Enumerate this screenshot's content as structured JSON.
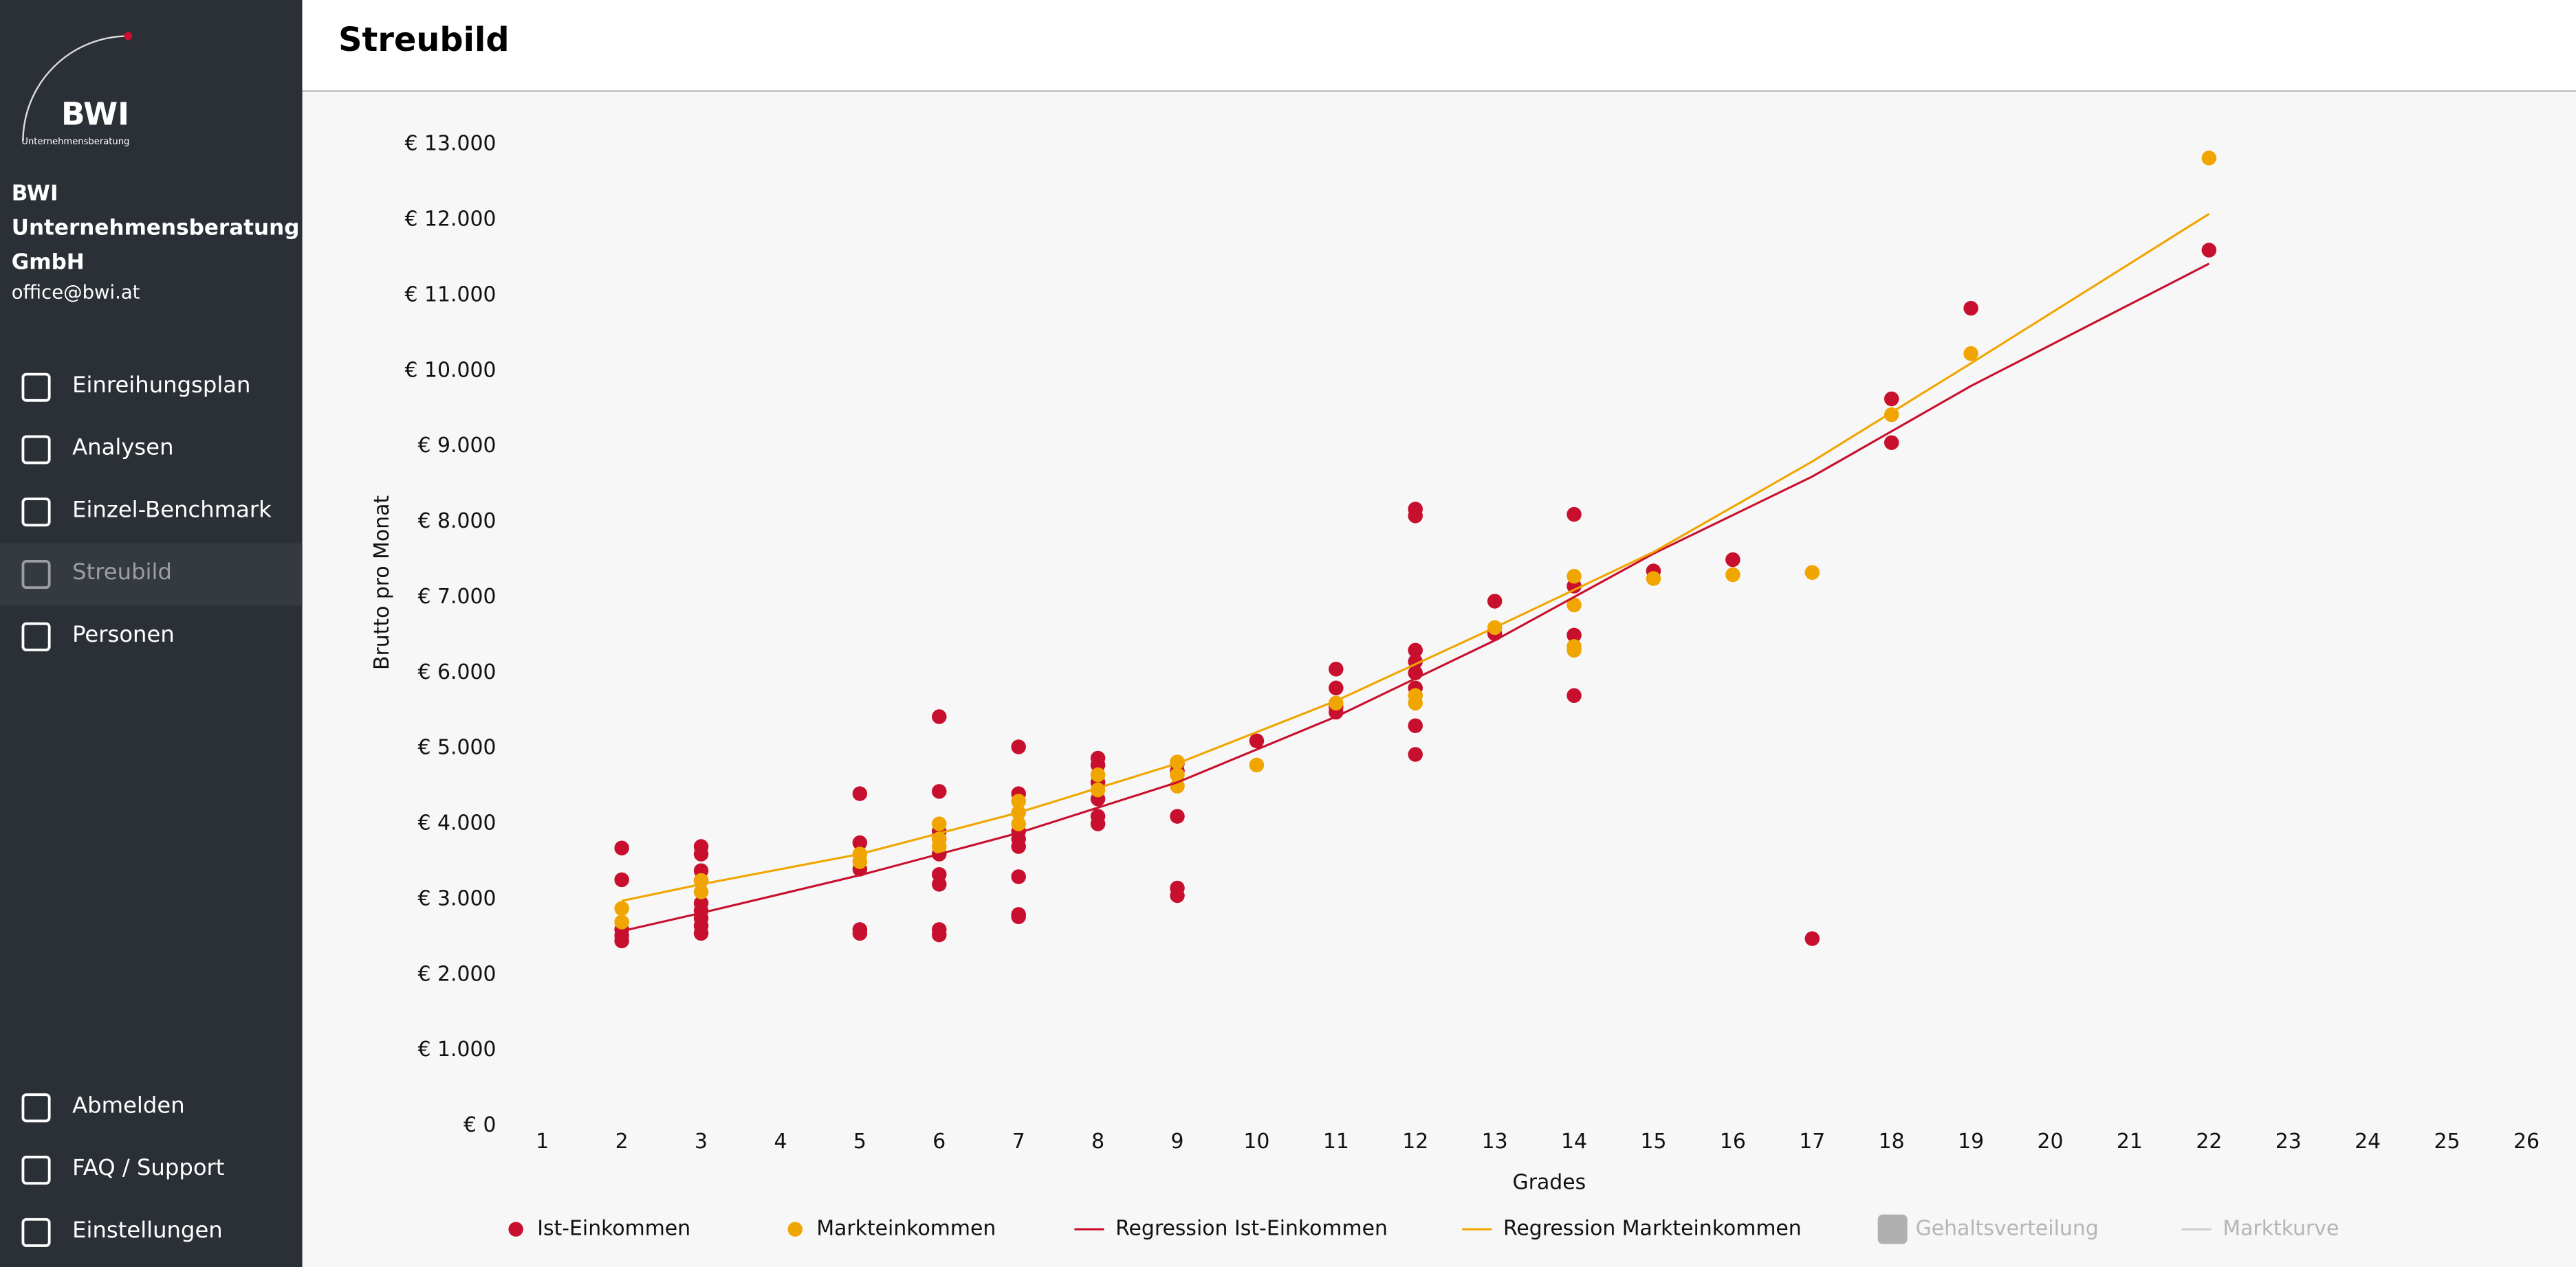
{
  "sidebar": {
    "logo": {
      "title": "BWI",
      "subtitle": "Unternehmensberatung"
    },
    "company": "BWI Unternehmensberatung GmbH",
    "email": "office@bwi.at",
    "nav": [
      {
        "label": "Einreihungsplan"
      },
      {
        "label": "Analysen"
      },
      {
        "label": "Einzel-Benchmark"
      },
      {
        "label": "Streubild",
        "active": true
      },
      {
        "label": "Personen"
      }
    ],
    "bottom_nav": [
      {
        "label": "Abmelden"
      },
      {
        "label": "FAQ / Support"
      },
      {
        "label": "Einstellungen"
      }
    ]
  },
  "header": {
    "title": "Streubild"
  },
  "chart_data": {
    "type": "scatter",
    "x_label": "Grades",
    "y_label": "Brutto pro Monat",
    "xlim": [
      0.5,
      26.5
    ],
    "ylim": [
      0,
      13000
    ],
    "xticks": [
      1,
      2,
      3,
      4,
      5,
      6,
      7,
      8,
      9,
      10,
      11,
      12,
      13,
      14,
      15,
      16,
      17,
      18,
      19,
      20,
      21,
      22,
      23,
      24,
      25,
      26
    ],
    "yticks": [
      {
        "value": 0,
        "label": "€ 0"
      },
      {
        "value": 1000,
        "label": "€ 1.000"
      },
      {
        "value": 2000,
        "label": "€ 2.000"
      },
      {
        "value": 3000,
        "label": "€ 3.000"
      },
      {
        "value": 4000,
        "label": "€ 4.000"
      },
      {
        "value": 5000,
        "label": "€ 5.000"
      },
      {
        "value": 6000,
        "label": "€ 6.000"
      },
      {
        "value": 7000,
        "label": "€ 7.000"
      },
      {
        "value": 8000,
        "label": "€ 8.000"
      },
      {
        "value": 9000,
        "label": "€ 9.000"
      },
      {
        "value": 10000,
        "label": "€ 10.000"
      },
      {
        "value": 11000,
        "label": "€ 11.000"
      },
      {
        "value": 12000,
        "label": "€ 12.000"
      },
      {
        "value": 13000,
        "label": "€ 13.000"
      }
    ],
    "series": [
      {
        "name": "Ist-Einkommen",
        "type": "scatter",
        "color": "#c8102e",
        "x": [
          2,
          2,
          2,
          2,
          2,
          3,
          3,
          3,
          3,
          3,
          3,
          3,
          3,
          3,
          5,
          5,
          5,
          5,
          5,
          6,
          6,
          6,
          6,
          6,
          6,
          6,
          6,
          6,
          7,
          7,
          7,
          7,
          7,
          7,
          7,
          7,
          8,
          8,
          8,
          8,
          8,
          8,
          9,
          9,
          9,
          9,
          9,
          10,
          11,
          11,
          11,
          11,
          12,
          12,
          12,
          12,
          13,
          13,
          12,
          12,
          12,
          12,
          14,
          14,
          14,
          14,
          15,
          16,
          17,
          18,
          18,
          19,
          22
        ],
        "values": [
          3680,
          3260,
          2600,
          2520,
          2450,
          3700,
          3600,
          3380,
          3250,
          2950,
          2850,
          2750,
          2650,
          2550,
          4400,
          3750,
          3400,
          2600,
          2550,
          5420,
          4430,
          3900,
          3800,
          3600,
          3330,
          3200,
          2600,
          2530,
          5020,
          4400,
          3900,
          3800,
          3700,
          3300,
          2800,
          2770,
          4870,
          4780,
          4550,
          4330,
          4100,
          4000,
          4800,
          4700,
          4100,
          3150,
          3050,
          5100,
          6050,
          5800,
          5550,
          5480,
          6150,
          6000,
          5300,
          4920,
          6950,
          6520,
          8170,
          8080,
          6300,
          5800,
          8100,
          7150,
          6500,
          5700,
          7350,
          7500,
          2480,
          9630,
          9050,
          10830,
          11600
        ]
      },
      {
        "name": "Markteinkommen",
        "type": "scatter",
        "color": "#f0a500",
        "x": [
          2,
          2,
          3,
          3,
          5,
          5,
          6,
          6,
          6,
          7,
          7,
          7,
          8,
          8,
          9,
          9,
          9,
          10,
          11,
          12,
          12,
          13,
          14,
          14,
          14,
          14,
          15,
          16,
          17,
          18,
          19,
          22
        ],
        "values": [
          2880,
          2700,
          3250,
          3100,
          3600,
          3500,
          4000,
          3800,
          3700,
          4300,
          4150,
          4000,
          4650,
          4450,
          4820,
          4650,
          4500,
          4780,
          5600,
          5600,
          5700,
          6600,
          7280,
          6900,
          6350,
          6300,
          7250,
          7300,
          7330,
          9420,
          10230,
          12820
        ]
      },
      {
        "name": "Regression Ist-Einkommen",
        "type": "line",
        "color": "#c8102e",
        "x": [
          2,
          3,
          5,
          7,
          9,
          11,
          13,
          15,
          17,
          19,
          22
        ],
        "values": [
          2580,
          2820,
          3320,
          3880,
          4550,
          5420,
          6430,
          7580,
          8600,
          9800,
          11420
        ]
      },
      {
        "name": "Regression Markteinkommen",
        "type": "line",
        "color": "#f0a500",
        "x": [
          2,
          3,
          5,
          7,
          9,
          11,
          13,
          15,
          17,
          19,
          22
        ],
        "values": [
          2980,
          3200,
          3600,
          4150,
          4800,
          5630,
          6600,
          7600,
          8800,
          10100,
          12080
        ]
      },
      {
        "name": "Gehaltsverteilung",
        "type": "area",
        "color": "#b0b0b0",
        "hidden": true,
        "x": [],
        "values": []
      },
      {
        "name": "Marktkurve",
        "type": "line",
        "color": "#d0d0d0",
        "hidden": true,
        "x": [],
        "values": []
      }
    ]
  }
}
